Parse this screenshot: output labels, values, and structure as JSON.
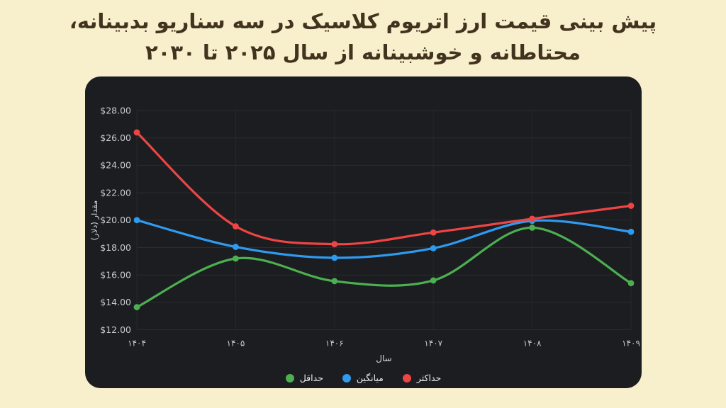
{
  "page": {
    "background": "#f8efcd",
    "title": {
      "line1": "پیش بینی قیمت ارز اتریوم کلاسیک در سه سناریو بدبینانه،",
      "line2": "محتاطانه و خوشبینانه از سال ۲۰۲۵ تا ۲۰۳۰",
      "color": "#42331f"
    }
  },
  "panel": {
    "background": "#1b1d20",
    "hgrid_color": "rgba(255,255,255,0.07)",
    "vgrid_color": "rgba(255,255,255,0.045)",
    "ytick_color": "#c7cbd1",
    "xtick_color": "#c3c8cd",
    "axis_title_color": "#d2d5da",
    "legend_text_color": "#e9ebee"
  },
  "chart_data": {
    "type": "line",
    "title": "پیش بینی قیمت ارز اتریوم کلاسیک در سه سناریو بدبینانه، محتاطانه و خوشبینانه از سال ۲۰۲۵ تا ۲۰۳۰",
    "categories": [
      "۱۴۰۴",
      "۱۴۰۵",
      "۱۴۰۶",
      "۱۴۰۷",
      "۱۴۰۸",
      "۱۴۰۹"
    ],
    "series": [
      {
        "key": "min",
        "name": "حداقل",
        "color": "#4caf50",
        "values": [
          13.65,
          17.2,
          15.55,
          15.6,
          19.45,
          15.4
        ]
      },
      {
        "key": "avg",
        "name": "میانگین",
        "color": "#2f9bf0",
        "values": [
          20.0,
          18.05,
          17.25,
          17.95,
          19.95,
          19.15
        ]
      },
      {
        "key": "max",
        "name": "حداکثر",
        "color": "#ef4444",
        "values": [
          26.4,
          19.55,
          18.25,
          19.1,
          20.1,
          21.05
        ]
      }
    ],
    "xlabel": "سال",
    "ylabel": "مقدار (دلار)",
    "ylim": [
      12,
      28
    ],
    "ytick_step": 2,
    "ytick_labels": [
      "$12.00",
      "$14.00",
      "$16.00",
      "$18.00",
      "$20.00",
      "$22.00",
      "$24.00",
      "$26.00",
      "$28.00"
    ],
    "grid": true,
    "smooth": true,
    "legend_position": "bottom"
  }
}
